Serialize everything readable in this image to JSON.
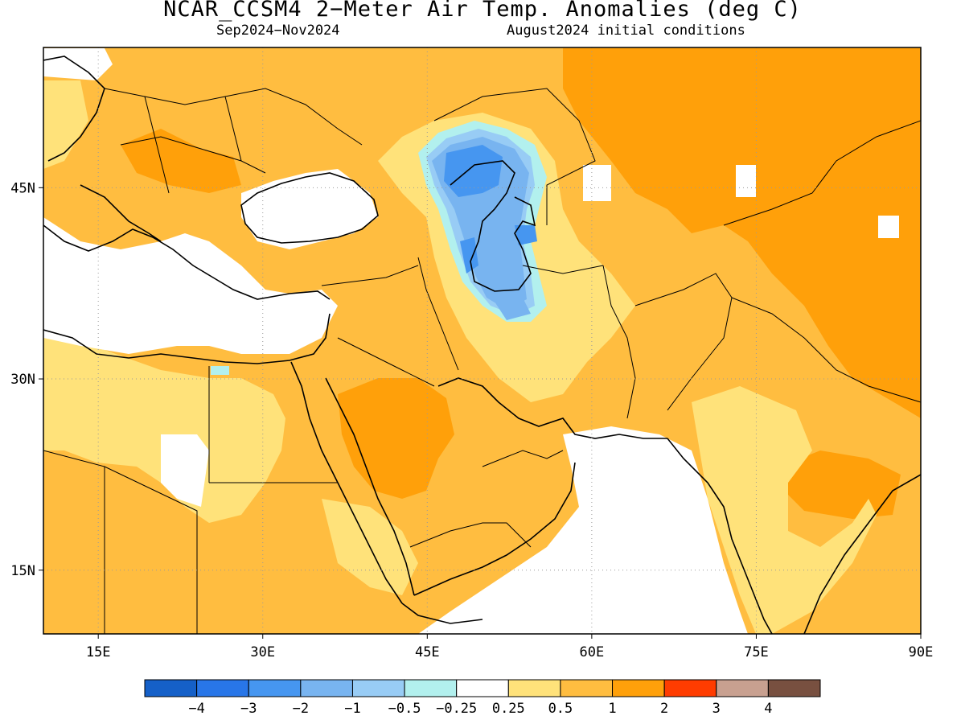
{
  "header": {
    "title": "NCAR_CCSM4 2−Meter Air Temp. Anomalies (deg C)",
    "period": "Sep2024−Nov2024",
    "init": "August2024 initial conditions"
  },
  "map": {
    "lon_ticks": [
      {
        "value": 15,
        "label": "15E"
      },
      {
        "value": 30,
        "label": "30E"
      },
      {
        "value": 45,
        "label": "45E"
      },
      {
        "value": 60,
        "label": "60E"
      },
      {
        "value": 75,
        "label": "75E"
      },
      {
        "value": 90,
        "label": "90E"
      }
    ],
    "lat_ticks": [
      {
        "value": 45,
        "label": "45N"
      },
      {
        "value": 30,
        "label": "30N"
      },
      {
        "value": 15,
        "label": "15N"
      }
    ],
    "lon_range": [
      10,
      90
    ],
    "lat_range": [
      10,
      56
    ],
    "grid": true
  },
  "legend": {
    "colors": [
      "#1560c8",
      "#2876e8",
      "#4696f0",
      "#78b4f0",
      "#98ccf5",
      "#b2f0ee",
      "#ffffff",
      "#ffe27a",
      "#ffbd40",
      "#ffa00a",
      "#ff3c00",
      "#c8a090",
      "#785040"
    ],
    "labels": [
      "−4",
      "−3",
      "−2",
      "−1",
      "−0.5",
      "−0.25",
      "0.25",
      "0.5",
      "1",
      "2",
      "3",
      "4"
    ]
  }
}
